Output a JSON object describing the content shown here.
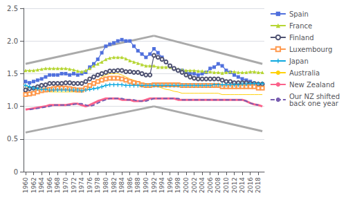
{
  "chart_data": {
    "type": "line",
    "x": [
      1960,
      1961,
      1962,
      1963,
      1964,
      1965,
      1966,
      1967,
      1968,
      1969,
      1970,
      1971,
      1972,
      1973,
      1974,
      1975,
      1976,
      1977,
      1978,
      1979,
      1980,
      1981,
      1982,
      1983,
      1984,
      1985,
      1986,
      1987,
      1988,
      1989,
      1990,
      1991,
      1992,
      1993,
      1994,
      1995,
      1996,
      1997,
      1998,
      1999,
      2000,
      2001,
      2002,
      2003,
      2004,
      2005,
      2006,
      2007,
      2008,
      2009,
      2010,
      2011,
      2012,
      2013,
      2014,
      2015,
      2016,
      2017,
      2018,
      2019
    ],
    "series": [
      {
        "name": "Spain",
        "marker": "square",
        "line_style": "solid",
        "values": [
          1.38,
          1.36,
          1.38,
          1.4,
          1.42,
          1.45,
          1.48,
          1.48,
          1.48,
          1.5,
          1.5,
          1.48,
          1.5,
          1.48,
          1.5,
          1.52,
          1.6,
          1.65,
          1.72,
          1.82,
          1.92,
          1.95,
          1.97,
          2.0,
          2.02,
          2.0,
          2.0,
          1.92,
          1.85,
          1.8,
          1.75,
          1.8,
          1.88,
          1.82,
          1.75,
          1.68,
          1.62,
          1.58,
          1.55,
          1.55,
          1.52,
          1.5,
          1.5,
          1.48,
          1.5,
          1.52,
          1.58,
          1.6,
          1.65,
          1.62,
          1.55,
          1.52,
          1.48,
          1.45,
          1.42,
          1.4,
          1.38,
          1.35,
          1.3,
          1.28
        ]
      },
      {
        "name": "France",
        "marker": "triangle",
        "line_style": "solid",
        "values": [
          1.55,
          1.55,
          1.55,
          1.56,
          1.57,
          1.58,
          1.58,
          1.58,
          1.58,
          1.58,
          1.58,
          1.57,
          1.56,
          1.54,
          1.53,
          1.55,
          1.58,
          1.62,
          1.65,
          1.68,
          1.72,
          1.74,
          1.75,
          1.75,
          1.75,
          1.73,
          1.7,
          1.68,
          1.66,
          1.64,
          1.62,
          1.62,
          1.62,
          1.6,
          1.6,
          1.6,
          1.6,
          1.58,
          1.57,
          1.56,
          1.55,
          1.55,
          1.55,
          1.54,
          1.54,
          1.53,
          1.53,
          1.52,
          1.52,
          1.51,
          1.52,
          1.53,
          1.53,
          1.52,
          1.52,
          1.52,
          1.53,
          1.53,
          1.52,
          1.52
        ]
      },
      {
        "name": "Finland",
        "marker": "circle_open",
        "line_style": "solid",
        "values": [
          1.25,
          1.27,
          1.28,
          1.3,
          1.32,
          1.33,
          1.35,
          1.35,
          1.35,
          1.35,
          1.36,
          1.36,
          1.35,
          1.35,
          1.35,
          1.38,
          1.42,
          1.45,
          1.48,
          1.5,
          1.52,
          1.54,
          1.54,
          1.55,
          1.55,
          1.53,
          1.53,
          1.52,
          1.52,
          1.5,
          1.48,
          1.48,
          1.78,
          1.75,
          1.72,
          1.68,
          1.62,
          1.58,
          1.55,
          1.52,
          1.48,
          1.45,
          1.43,
          1.42,
          1.42,
          1.42,
          1.42,
          1.42,
          1.42,
          1.4,
          1.38,
          1.38,
          1.36,
          1.36,
          1.36,
          1.36,
          1.35,
          1.35,
          1.34,
          1.34
        ]
      },
      {
        "name": "Luxembourg",
        "marker": "square_open",
        "line_style": "solid",
        "values": [
          1.18,
          1.19,
          1.2,
          1.22,
          1.24,
          1.25,
          1.26,
          1.27,
          1.28,
          1.28,
          1.28,
          1.27,
          1.26,
          1.25,
          1.25,
          1.28,
          1.32,
          1.35,
          1.38,
          1.4,
          1.42,
          1.43,
          1.43,
          1.43,
          1.42,
          1.4,
          1.38,
          1.36,
          1.35,
          1.33,
          1.32,
          1.32,
          1.33,
          1.33,
          1.33,
          1.33,
          1.33,
          1.33,
          1.33,
          1.32,
          1.32,
          1.32,
          1.32,
          1.32,
          1.32,
          1.32,
          1.32,
          1.32,
          1.32,
          1.3,
          1.3,
          1.3,
          1.3,
          1.3,
          1.3,
          1.3,
          1.3,
          1.3,
          1.28,
          1.28
        ]
      },
      {
        "name": "Japan",
        "marker": "plus",
        "line_style": "solid",
        "values": [
          1.32,
          1.3,
          1.28,
          1.27,
          1.26,
          1.26,
          1.25,
          1.25,
          1.25,
          1.25,
          1.25,
          1.25,
          1.25,
          1.25,
          1.24,
          1.25,
          1.26,
          1.27,
          1.28,
          1.3,
          1.32,
          1.33,
          1.33,
          1.33,
          1.33,
          1.32,
          1.32,
          1.32,
          1.32,
          1.32,
          1.32,
          1.32,
          1.32,
          1.32,
          1.32,
          1.32,
          1.32,
          1.32,
          1.32,
          1.32,
          1.32,
          1.32,
          1.32,
          1.32,
          1.32,
          1.32,
          1.32,
          1.33,
          1.33,
          1.33,
          1.33,
          1.33,
          1.33,
          1.33,
          1.34,
          1.34,
          1.35,
          1.35,
          1.35,
          1.35
        ]
      },
      {
        "name": "Australia",
        "marker": "none",
        "line_style": "thin",
        "values": [
          1.3,
          1.28,
          1.26,
          1.25,
          1.24,
          1.23,
          1.22,
          1.22,
          1.22,
          1.22,
          1.22,
          1.22,
          1.22,
          1.22,
          1.22,
          1.25,
          1.3,
          1.35,
          1.4,
          1.45,
          1.48,
          1.5,
          1.5,
          1.5,
          1.48,
          1.45,
          1.42,
          1.4,
          1.38,
          1.36,
          1.35,
          1.33,
          1.32,
          1.3,
          1.28,
          1.26,
          1.25,
          1.23,
          1.22,
          1.2,
          1.2,
          1.2,
          1.2,
          1.2,
          1.2,
          1.2,
          1.2,
          1.2,
          1.2,
          1.18,
          1.18,
          1.18,
          1.18,
          1.18,
          1.18,
          1.18,
          1.18,
          1.18,
          1.18,
          1.18
        ]
      },
      {
        "name": "New Zealand",
        "marker": "none",
        "line_style": "thick",
        "values": [
          0.95,
          0.96,
          0.97,
          0.98,
          0.99,
          1.0,
          1.02,
          1.02,
          1.02,
          1.02,
          1.02,
          1.03,
          1.04,
          1.04,
          1.02,
          1.0,
          1.02,
          1.05,
          1.08,
          1.1,
          1.12,
          1.12,
          1.12,
          1.12,
          1.1,
          1.1,
          1.1,
          1.08,
          1.08,
          1.08,
          1.1,
          1.12,
          1.12,
          1.12,
          1.12,
          1.12,
          1.12,
          1.12,
          1.1,
          1.1,
          1.1,
          1.1,
          1.1,
          1.1,
          1.1,
          1.1,
          1.1,
          1.1,
          1.1,
          1.1,
          1.1,
          1.1,
          1.1,
          1.1,
          1.1,
          1.08,
          1.05,
          1.03,
          1.02,
          1.0
        ]
      },
      {
        "name": "Our NZ shifted\nback one year",
        "marker": "none",
        "line_style": "dashed",
        "values": [
          null,
          0.95,
          0.96,
          0.97,
          0.98,
          0.99,
          1.0,
          1.02,
          1.02,
          1.02,
          1.02,
          1.02,
          1.03,
          1.04,
          1.04,
          1.02,
          1.0,
          1.02,
          1.05,
          1.08,
          1.1,
          1.12,
          1.12,
          1.12,
          1.12,
          1.1,
          1.1,
          1.1,
          1.08,
          1.08,
          1.08,
          1.1,
          1.12,
          1.12,
          1.12,
          1.12,
          1.12,
          1.12,
          1.12,
          1.1,
          1.1,
          1.1,
          1.1,
          1.1,
          1.1,
          1.1,
          1.1,
          1.1,
          1.1,
          1.1,
          1.1,
          1.1,
          1.1,
          1.1,
          1.1,
          1.08,
          1.05,
          1.03,
          1.02,
          null
        ]
      },
      {
        "color": "#aaaaaa",
        "marker": "none",
        "line_style": "guide",
        "x": [
          1960,
          1992
        ],
        "values": [
          1.65,
          2.08
        ]
      },
      {
        "color": "#aaaaaa",
        "marker": "none",
        "line_style": "guide",
        "x": [
          1960,
          1992
        ],
        "values": [
          0.6,
          1.0
        ]
      },
      {
        "color": "#aaaaaa",
        "marker": "none",
        "line_style": "guide",
        "x": [
          1992,
          2019
        ],
        "values": [
          2.08,
          1.65
        ]
      },
      {
        "color": "#aaaaaa",
        "marker": "none",
        "line_style": "guide",
        "x": [
          1992,
          2019
        ],
        "values": [
          1.0,
          0.62
        ]
      }
    ],
    "xlim": [
      1959.5,
      2019.5
    ],
    "xticks": [
      1960,
      1962,
      1964,
      1966,
      1968,
      1970,
      1972,
      1974,
      1976,
      1978,
      1980,
      1982,
      1984,
      1986,
      1988,
      1990,
      1992,
      1994,
      1996,
      1998,
      2000,
      2002,
      2004,
      2006,
      2008,
      2010,
      2012,
      2014,
      2016,
      2018
    ],
    "ylim": [
      0,
      2.5
    ],
    "yticks": [
      0,
      0.5,
      {
        "value": 1,
        "label": "1.0"
      },
      1.5,
      {
        "value": 2,
        "label": "2.0"
      },
      2.5
    ],
    "grid": "y",
    "legend": "right"
  }
}
